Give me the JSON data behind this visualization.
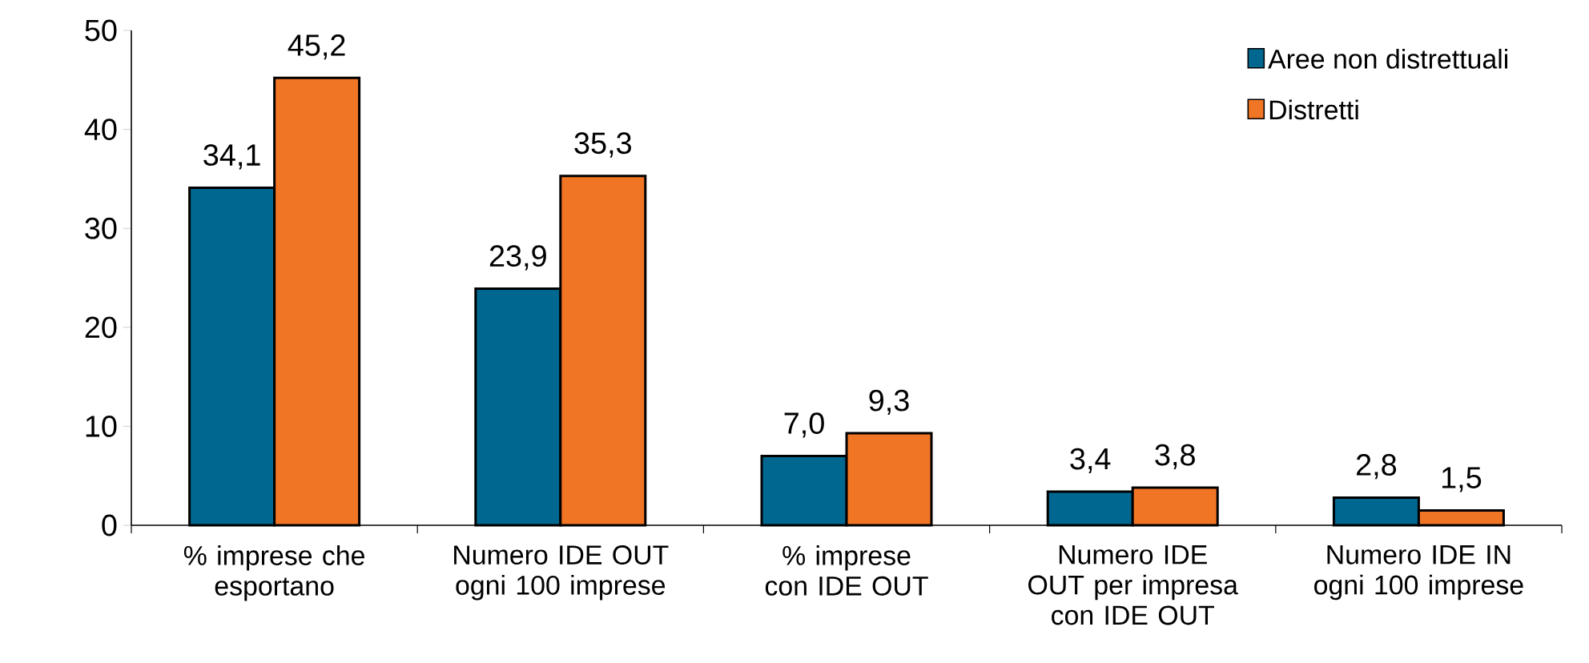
{
  "chart_data": {
    "type": "bar",
    "categories": [
      "% imprese che esportano",
      "Numero IDE OUT ogni 100 imprese",
      "% imprese con IDE OUT",
      "Numero IDE OUT per impresa con IDE OUT",
      "Numero IDE IN ogni 100 imprese"
    ],
    "series": [
      {
        "name": "Aree non distrettuali",
        "color": "#006890",
        "values": [
          34.1,
          23.9,
          7.0,
          3.4,
          2.8
        ],
        "value_labels": [
          "34,1",
          "23,9",
          "7,0",
          "3,4",
          "2,8"
        ]
      },
      {
        "name": "Distretti",
        "color": "#f07524",
        "values": [
          45.2,
          35.3,
          9.3,
          3.8,
          1.5
        ],
        "value_labels": [
          "45,2",
          "35,3",
          "9,3",
          "3,8",
          "1,5"
        ]
      }
    ],
    "ylim": [
      0,
      50
    ],
    "yticks": [
      0,
      10,
      20,
      30,
      40,
      50
    ],
    "legend": "top right"
  }
}
